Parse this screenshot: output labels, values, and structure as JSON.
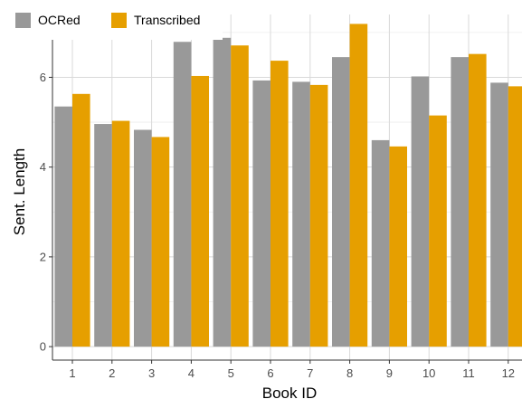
{
  "chart_data": {
    "type": "bar",
    "categories": [
      "1",
      "2",
      "3",
      "4",
      "5",
      "6",
      "7",
      "8",
      "9",
      "10",
      "11",
      "12"
    ],
    "series": [
      {
        "name": "OCRed",
        "color": "#999999",
        "values": [
          5.35,
          4.96,
          4.83,
          6.79,
          6.88,
          5.93,
          5.9,
          6.45,
          4.6,
          6.02,
          6.45,
          5.88
        ]
      },
      {
        "name": "Transcribed",
        "color": "#E69F00",
        "values": [
          5.63,
          5.03,
          4.67,
          6.03,
          6.71,
          6.37,
          5.83,
          7.19,
          4.46,
          5.15,
          6.52,
          5.8
        ]
      }
    ],
    "xlabel": "Book ID",
    "ylabel": "Sent. Length",
    "yticks": [
      0,
      2,
      4,
      6
    ],
    "ylim": [
      -0.3,
      7.4
    ],
    "grid": true,
    "legend_position": "top-left"
  }
}
